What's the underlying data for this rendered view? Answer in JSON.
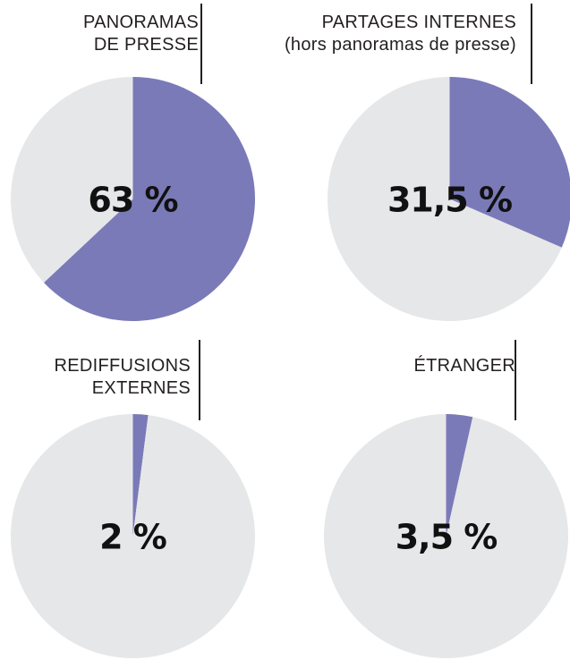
{
  "colors": {
    "highlight": "#7b7ab8",
    "background_slice": "#e6e7e8",
    "text": "#231f20"
  },
  "chart_data": [
    {
      "type": "pie",
      "title": "PANORAMAS\nDE PRESSE",
      "values": [
        63,
        37
      ],
      "label": "63 %"
    },
    {
      "type": "pie",
      "title": "PARTAGES INTERNES\n(hors panoramas de presse)",
      "values": [
        31.5,
        68.5
      ],
      "label": "31,5 %"
    },
    {
      "type": "pie",
      "title": "REDIFFUSIONS\nEXTERNES",
      "values": [
        2,
        98
      ],
      "label": "2 %"
    },
    {
      "type": "pie",
      "title": "ÉTRANGER",
      "values": [
        3.5,
        96.5
      ],
      "label": "3,5 %"
    }
  ]
}
